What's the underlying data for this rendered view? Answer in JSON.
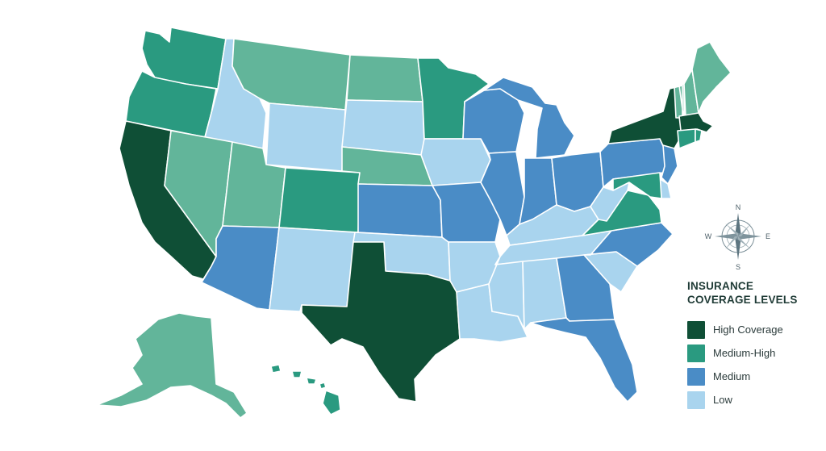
{
  "legend": {
    "title_line1": "INSURANCE",
    "title_line2": "COVERAGE LEVELS",
    "items": [
      {
        "key": "high",
        "label": "High Coverage",
        "color": "#0f4f36"
      },
      {
        "key": "medhigh",
        "label": "Medium-High",
        "color": "#2a9a80"
      },
      {
        "key": "medium",
        "label": "Medium",
        "color": "#4a8cc6"
      },
      {
        "key": "low",
        "label": "Low",
        "color": "#a9d4ee"
      }
    ]
  },
  "compass": {
    "n": "N",
    "e": "E",
    "s": "S",
    "w": "W",
    "icon": "compass-rose-icon"
  },
  "state_colors": {
    "high": "#0f4f36",
    "medhigh": "#2a9a80",
    "medhigh_light": "#62b59a",
    "medium": "#4a8cc6",
    "low": "#a9d4ee"
  },
  "states": [
    {
      "id": "WA",
      "level": "medhigh"
    },
    {
      "id": "OR",
      "level": "medhigh"
    },
    {
      "id": "CA",
      "level": "high"
    },
    {
      "id": "ID",
      "level": "low"
    },
    {
      "id": "NV",
      "level": "medhigh_light"
    },
    {
      "id": "MT",
      "level": "medhigh_light"
    },
    {
      "id": "WY",
      "level": "low"
    },
    {
      "id": "UT",
      "level": "medhigh_light"
    },
    {
      "id": "CO",
      "level": "medhigh"
    },
    {
      "id": "AZ",
      "level": "medium"
    },
    {
      "id": "NM",
      "level": "low"
    },
    {
      "id": "ND",
      "level": "medhigh_light"
    },
    {
      "id": "SD",
      "level": "low"
    },
    {
      "id": "NE",
      "level": "medhigh_light"
    },
    {
      "id": "KS",
      "level": "medium"
    },
    {
      "id": "OK",
      "level": "low"
    },
    {
      "id": "TX",
      "level": "high"
    },
    {
      "id": "MN",
      "level": "medhigh"
    },
    {
      "id": "IA",
      "level": "low"
    },
    {
      "id": "MO",
      "level": "medium"
    },
    {
      "id": "AR",
      "level": "low"
    },
    {
      "id": "LA",
      "level": "low"
    },
    {
      "id": "WI",
      "level": "medium"
    },
    {
      "id": "IL",
      "level": "medium"
    },
    {
      "id": "MI",
      "level": "medium"
    },
    {
      "id": "IN",
      "level": "medium"
    },
    {
      "id": "OH",
      "level": "medium"
    },
    {
      "id": "KY",
      "level": "low"
    },
    {
      "id": "TN",
      "level": "low"
    },
    {
      "id": "MS",
      "level": "low"
    },
    {
      "id": "AL",
      "level": "low"
    },
    {
      "id": "GA",
      "level": "medium"
    },
    {
      "id": "FL",
      "level": "medium"
    },
    {
      "id": "SC",
      "level": "low"
    },
    {
      "id": "NC",
      "level": "medium"
    },
    {
      "id": "VA",
      "level": "medhigh"
    },
    {
      "id": "WV",
      "level": "low"
    },
    {
      "id": "PA",
      "level": "medium"
    },
    {
      "id": "NY",
      "level": "high"
    },
    {
      "id": "VT",
      "level": "medhigh_light"
    },
    {
      "id": "NH",
      "level": "medhigh_light"
    },
    {
      "id": "ME",
      "level": "medhigh_light"
    },
    {
      "id": "MA",
      "level": "high"
    },
    {
      "id": "CT",
      "level": "medhigh"
    },
    {
      "id": "RI",
      "level": "medhigh"
    },
    {
      "id": "NJ",
      "level": "medium"
    },
    {
      "id": "DE",
      "level": "low"
    },
    {
      "id": "MD",
      "level": "medhigh"
    },
    {
      "id": "AK",
      "level": "medhigh_light"
    },
    {
      "id": "HI",
      "level": "medhigh"
    }
  ]
}
